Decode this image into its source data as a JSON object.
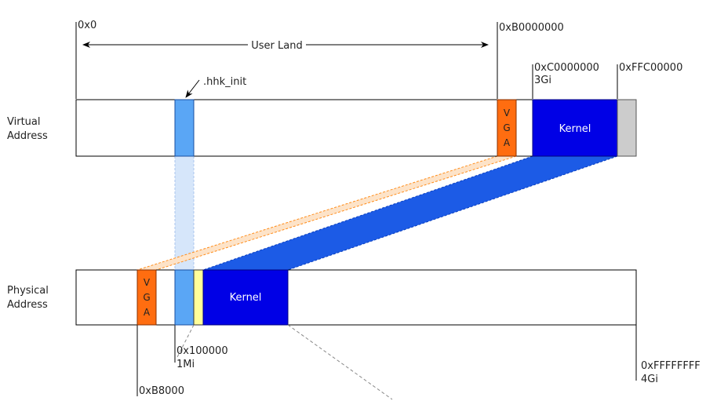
{
  "labels": {
    "virtual_address": [
      "Virtual",
      "Address"
    ],
    "physical_address": [
      "Physical",
      "Address"
    ],
    "user_land": "User Land",
    "hhk_init": ".hhk_init",
    "addr_zero": "0x0",
    "addr_b0000000": "0xB0000000",
    "addr_c0000000": "0xC0000000",
    "addr_3gi": "3Gi",
    "addr_ffc00000": "0xFFC00000",
    "addr_100000": "0x100000",
    "addr_1mi": "1Mi",
    "addr_b8000": "0xB8000",
    "addr_ffffffff": "0xFFFFFFFF",
    "addr_4gi": "4Gi"
  },
  "blocks": {
    "vga_letters": [
      "V",
      "G",
      "A"
    ],
    "kernel_virtual": "Kernel",
    "kernel_physical": "Kernel"
  },
  "colors": {
    "vga": "#ff6d10",
    "kernel": "#0000e6",
    "hhk": "#5aa6f5",
    "hhk_light": "#d6e6fa",
    "reserved": "#cccccc",
    "boot_stub": "#ffff99",
    "mapping": "#1c5be6",
    "vga_mapping": "#fde3c8",
    "line": "#000000"
  }
}
